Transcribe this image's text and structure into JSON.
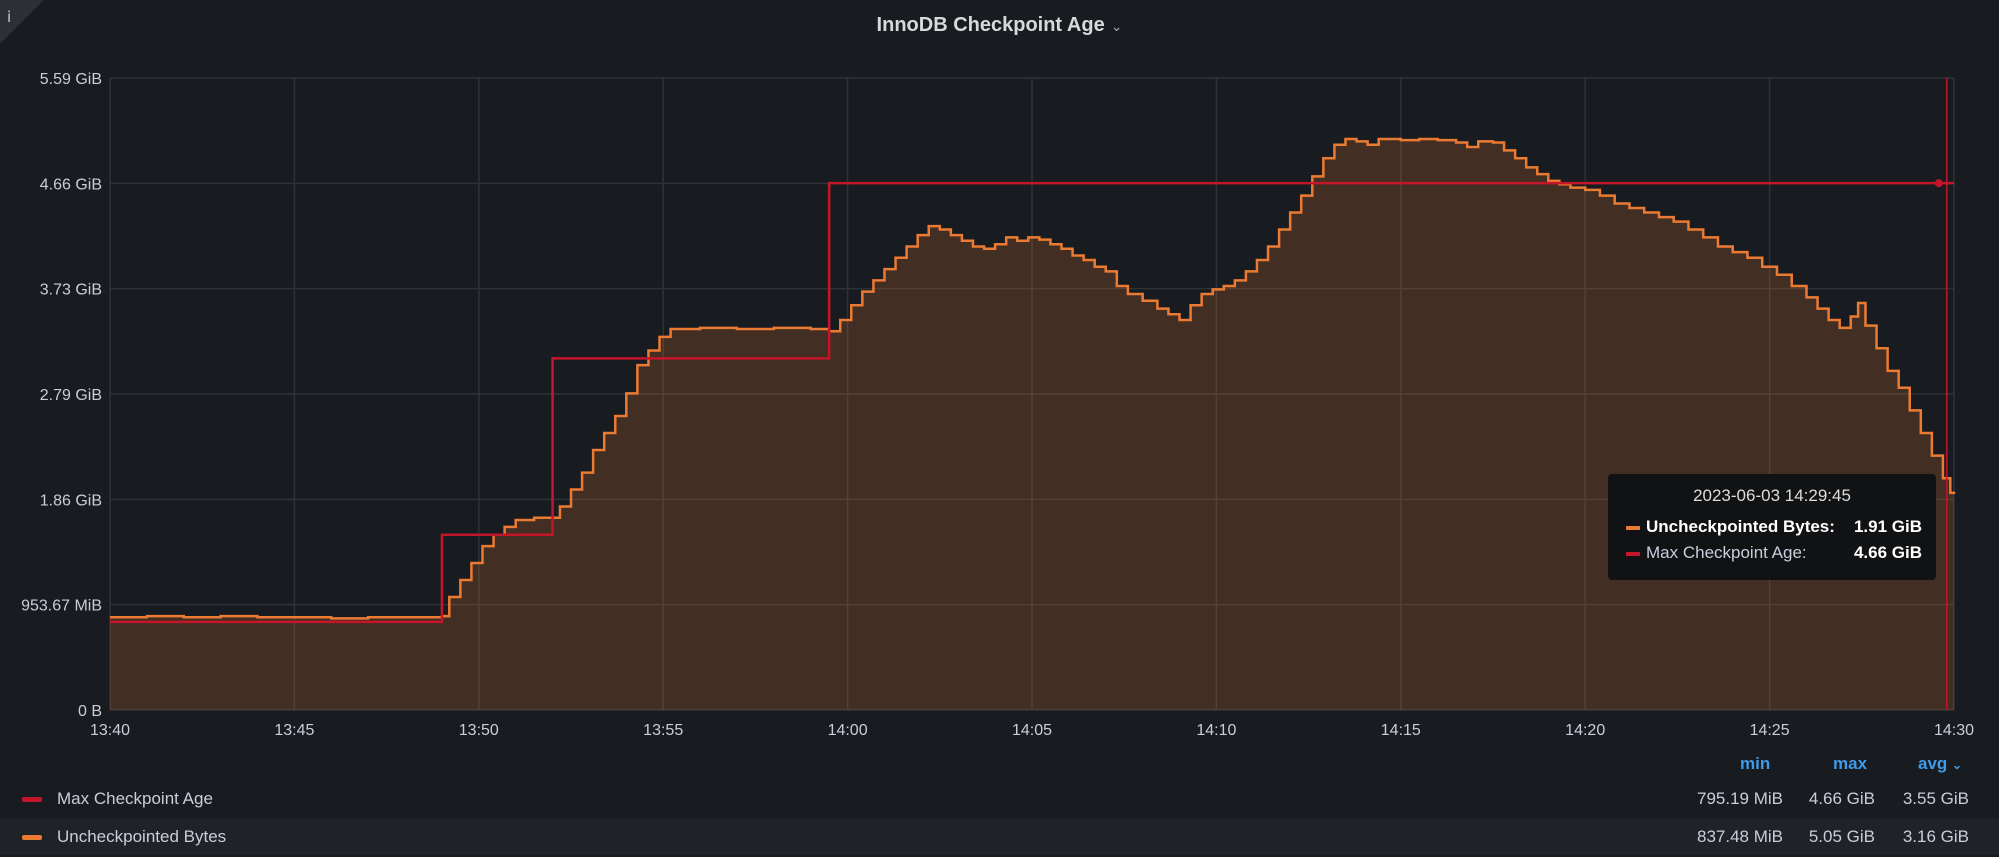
{
  "panel": {
    "title": "InnoDB Checkpoint Age",
    "info_icon": "info-icon",
    "title_menu_icon": "chevron-down-icon"
  },
  "chart_data": {
    "type": "line",
    "title": "InnoDB Checkpoint Age",
    "x_ticks": [
      "13:40",
      "13:45",
      "13:50",
      "13:55",
      "14:00",
      "14:05",
      "14:10",
      "14:15",
      "14:20",
      "14:25",
      "14:30"
    ],
    "y_ticks": [
      "0 B",
      "953.67 MiB",
      "1.86 GiB",
      "2.79 GiB",
      "3.73 GiB",
      "4.66 GiB",
      "5.59 GiB"
    ],
    "x_range_minutes": [
      0,
      50
    ],
    "y_range_gib": [
      0,
      5.59
    ],
    "grid": true,
    "legend_placement": "bottom",
    "series": [
      {
        "name": "Max Checkpoint Age",
        "color": "#c4162a",
        "style": "step",
        "points": [
          [
            0,
            0.78
          ],
          [
            9,
            0.78
          ],
          [
            9,
            1.55
          ],
          [
            12,
            1.55
          ],
          [
            12,
            3.11
          ],
          [
            19.5,
            3.11
          ],
          [
            19.5,
            4.66
          ],
          [
            50,
            4.66
          ]
        ]
      },
      {
        "name": "Uncheckpointed Bytes",
        "color": "#eb7b33",
        "style": "step-area",
        "points": [
          [
            0,
            0.82
          ],
          [
            1,
            0.83
          ],
          [
            2,
            0.82
          ],
          [
            3,
            0.83
          ],
          [
            4,
            0.82
          ],
          [
            5,
            0.82
          ],
          [
            6,
            0.81
          ],
          [
            7,
            0.82
          ],
          [
            8,
            0.82
          ],
          [
            9,
            0.83
          ],
          [
            9.2,
            1.0
          ],
          [
            9.5,
            1.15
          ],
          [
            9.8,
            1.3
          ],
          [
            10.1,
            1.45
          ],
          [
            10.4,
            1.55
          ],
          [
            10.7,
            1.62
          ],
          [
            11,
            1.68
          ],
          [
            11.5,
            1.7
          ],
          [
            12,
            1.7
          ],
          [
            12.2,
            1.8
          ],
          [
            12.5,
            1.95
          ],
          [
            12.8,
            2.1
          ],
          [
            13.1,
            2.3
          ],
          [
            13.4,
            2.45
          ],
          [
            13.7,
            2.6
          ],
          [
            14,
            2.8
          ],
          [
            14.3,
            3.05
          ],
          [
            14.6,
            3.18
          ],
          [
            14.9,
            3.3
          ],
          [
            15.2,
            3.37
          ],
          [
            16,
            3.38
          ],
          [
            17,
            3.37
          ],
          [
            18,
            3.38
          ],
          [
            19,
            3.37
          ],
          [
            19.5,
            3.35
          ],
          [
            19.8,
            3.45
          ],
          [
            20.1,
            3.58
          ],
          [
            20.4,
            3.7
          ],
          [
            20.7,
            3.8
          ],
          [
            21,
            3.9
          ],
          [
            21.3,
            4.0
          ],
          [
            21.6,
            4.1
          ],
          [
            21.9,
            4.2
          ],
          [
            22.2,
            4.28
          ],
          [
            22.5,
            4.25
          ],
          [
            22.8,
            4.2
          ],
          [
            23.1,
            4.15
          ],
          [
            23.4,
            4.1
          ],
          [
            23.7,
            4.08
          ],
          [
            24,
            4.12
          ],
          [
            24.3,
            4.18
          ],
          [
            24.6,
            4.15
          ],
          [
            24.9,
            4.18
          ],
          [
            25.2,
            4.16
          ],
          [
            25.5,
            4.12
          ],
          [
            25.8,
            4.08
          ],
          [
            26.1,
            4.02
          ],
          [
            26.4,
            3.98
          ],
          [
            26.7,
            3.92
          ],
          [
            27,
            3.88
          ],
          [
            27.3,
            3.75
          ],
          [
            27.6,
            3.68
          ],
          [
            28,
            3.62
          ],
          [
            28.4,
            3.55
          ],
          [
            28.7,
            3.5
          ],
          [
            29,
            3.45
          ],
          [
            29.3,
            3.58
          ],
          [
            29.6,
            3.68
          ],
          [
            29.9,
            3.72
          ],
          [
            30.2,
            3.75
          ],
          [
            30.5,
            3.8
          ],
          [
            30.8,
            3.88
          ],
          [
            31.1,
            3.98
          ],
          [
            31.4,
            4.1
          ],
          [
            31.7,
            4.25
          ],
          [
            32,
            4.4
          ],
          [
            32.3,
            4.55
          ],
          [
            32.6,
            4.72
          ],
          [
            32.9,
            4.88
          ],
          [
            33.2,
            5.0
          ],
          [
            33.5,
            5.05
          ],
          [
            33.8,
            5.03
          ],
          [
            34.1,
            5.0
          ],
          [
            34.4,
            5.05
          ],
          [
            35,
            5.04
          ],
          [
            35.5,
            5.05
          ],
          [
            36,
            5.04
          ],
          [
            36.5,
            5.02
          ],
          [
            36.8,
            4.98
          ],
          [
            37.1,
            5.03
          ],
          [
            37.5,
            5.02
          ],
          [
            37.8,
            4.95
          ],
          [
            38.1,
            4.88
          ],
          [
            38.4,
            4.8
          ],
          [
            38.7,
            4.74
          ],
          [
            39,
            4.68
          ],
          [
            39.3,
            4.65
          ],
          [
            39.6,
            4.62
          ],
          [
            40,
            4.6
          ],
          [
            40.4,
            4.55
          ],
          [
            40.8,
            4.48
          ],
          [
            41.2,
            4.44
          ],
          [
            41.6,
            4.4
          ],
          [
            42,
            4.36
          ],
          [
            42.4,
            4.32
          ],
          [
            42.8,
            4.25
          ],
          [
            43.2,
            4.18
          ],
          [
            43.6,
            4.1
          ],
          [
            44,
            4.05
          ],
          [
            44.4,
            4.0
          ],
          [
            44.8,
            3.92
          ],
          [
            45.2,
            3.85
          ],
          [
            45.6,
            3.75
          ],
          [
            46,
            3.65
          ],
          [
            46.3,
            3.55
          ],
          [
            46.6,
            3.45
          ],
          [
            46.9,
            3.38
          ],
          [
            47.2,
            3.48
          ],
          [
            47.4,
            3.6
          ],
          [
            47.6,
            3.4
          ],
          [
            47.9,
            3.2
          ],
          [
            48.2,
            3.0
          ],
          [
            48.5,
            2.85
          ],
          [
            48.8,
            2.65
          ],
          [
            49.1,
            2.45
          ],
          [
            49.4,
            2.25
          ],
          [
            49.7,
            2.05
          ],
          [
            49.9,
            1.92
          ],
          [
            50,
            1.91
          ]
        ]
      }
    ]
  },
  "tooltip": {
    "time": "2023-06-03 14:29:45",
    "rows": [
      {
        "label": "Uncheckpointed Bytes:",
        "value": "1.91 GiB",
        "color": "#eb7b33"
      },
      {
        "label": "Max Checkpoint Age:",
        "value": "4.66 GiB",
        "color": "#c4162a"
      }
    ]
  },
  "legend": {
    "headers": {
      "min": "min",
      "max": "max",
      "avg": "avg"
    },
    "rows": [
      {
        "name": "Max Checkpoint Age",
        "color": "#c4162a",
        "min": "795.19 MiB",
        "max": "4.66 GiB",
        "avg": "3.55 GiB"
      },
      {
        "name": "Uncheckpointed Bytes",
        "color": "#eb7b33",
        "min": "837.48 MiB",
        "max": "5.05 GiB",
        "avg": "3.16 GiB"
      }
    ]
  }
}
